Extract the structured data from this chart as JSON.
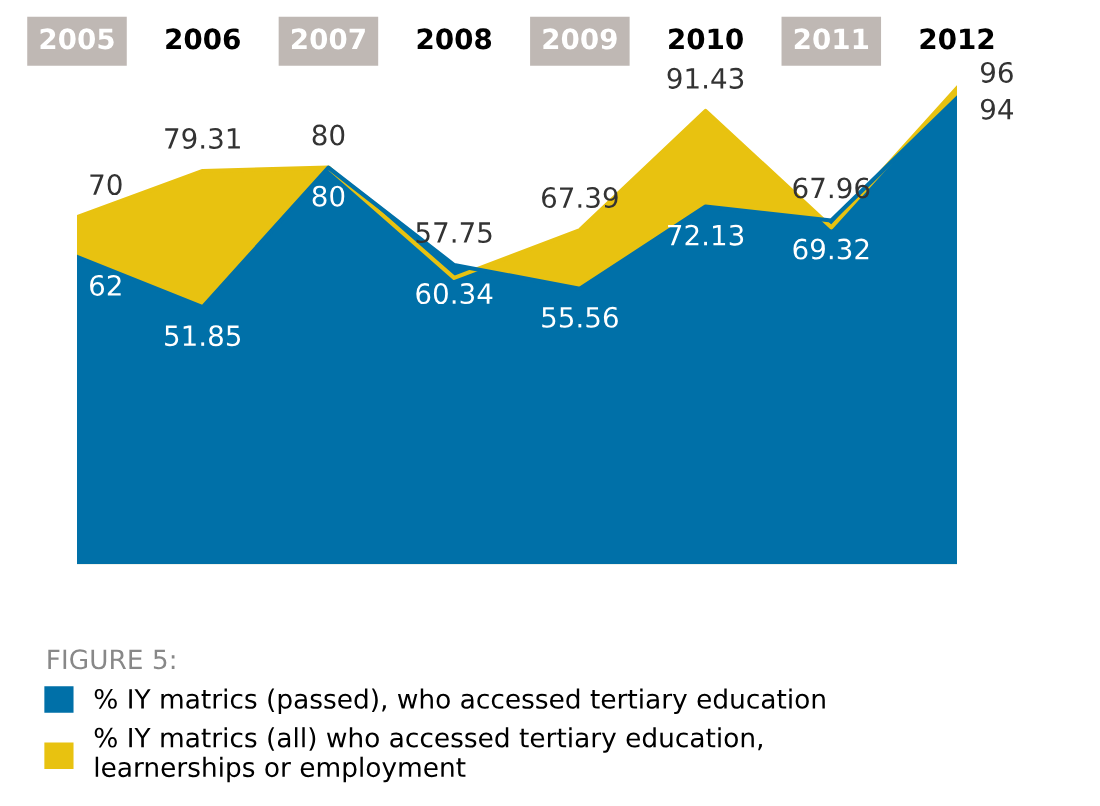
{
  "chart_data": {
    "type": "area",
    "categories": [
      "2005",
      "2006",
      "2007",
      "2008",
      "2009",
      "2010",
      "2011",
      "2012"
    ],
    "legend_title": "FIGURE 5:",
    "series": [
      {
        "name": "% IY matrics (all) who accessed tertiary education,\nlearnerships or employment",
        "color": "#e8c210",
        "values": [
          70,
          79.31,
          80,
          57.75,
          67.39,
          91.43,
          67.96,
          96
        ]
      },
      {
        "name": "% IY matrics (passed), who accessed tertiary education",
        "color": "#0070a8",
        "values": [
          62,
          51.85,
          80,
          60.34,
          55.56,
          72.13,
          69.32,
          94
        ]
      }
    ],
    "data_labels": true,
    "relative": false,
    "grid": false,
    "legend": "bottom"
  }
}
